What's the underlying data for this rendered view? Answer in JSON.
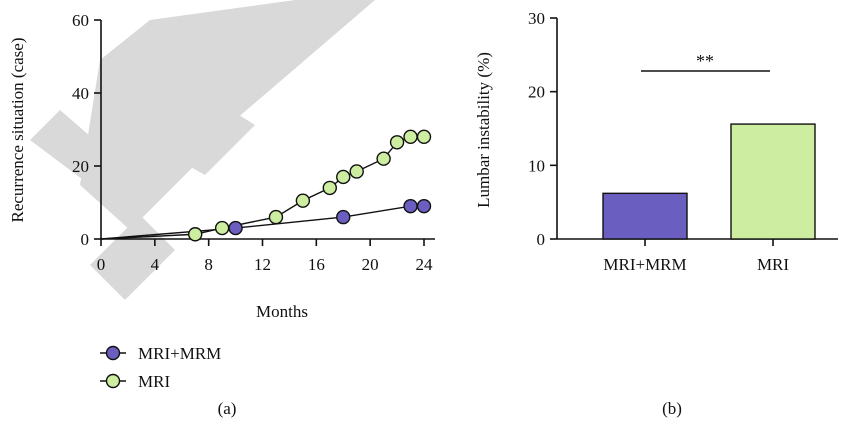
{
  "chart_data": [
    {
      "type": "line",
      "panel_label": "(a)",
      "title": "",
      "xlabel": "Months",
      "ylabel": "Recurrence situation (case)",
      "xlim": [
        0,
        24
      ],
      "ylim": [
        0,
        60
      ],
      "xticks": [
        0,
        4,
        8,
        12,
        16,
        20,
        24
      ],
      "yticks": [
        0,
        20,
        40,
        60
      ],
      "grid": false,
      "legend_position": "bottom-left below plot",
      "series": [
        {
          "name": "MRI+MRM",
          "color": "#6a5fc1",
          "x": [
            0,
            10,
            18,
            23,
            24
          ],
          "y": [
            0,
            3,
            6,
            9,
            9
          ],
          "markers_from_index": 1
        },
        {
          "name": "MRI",
          "color": "#cdeea0",
          "x": [
            0,
            7,
            9,
            13,
            15,
            17,
            18,
            19,
            21,
            22,
            23,
            24
          ],
          "y": [
            0,
            1.3,
            3,
            6,
            10.5,
            14,
            17,
            18.5,
            22,
            26.5,
            28,
            28
          ],
          "markers_from_index": 1
        }
      ]
    },
    {
      "type": "bar",
      "panel_label": "(b)",
      "title": "",
      "xlabel": "",
      "ylabel": "Lumbar instability (%)",
      "ylim": [
        0,
        30
      ],
      "yticks": [
        0,
        10,
        20,
        30
      ],
      "grid": false,
      "categories": [
        "MRI+MRM",
        "MRI"
      ],
      "values": [
        6.2,
        15.6
      ],
      "colors": [
        "#6a5fc1",
        "#cdeea0"
      ],
      "annotation": "**"
    }
  ]
}
